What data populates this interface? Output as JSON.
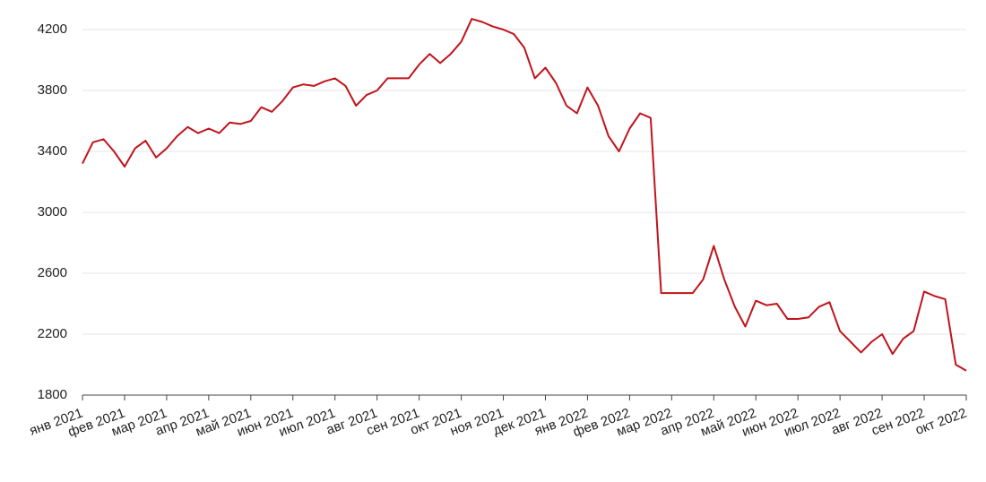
{
  "chart_data": {
    "type": "line",
    "xticks": [
      "янв 2021",
      "фев 2021",
      "мар 2021",
      "апр 2021",
      "май 2021",
      "июн 2021",
      "июл 2021",
      "авг 2021",
      "сен 2021",
      "окт 2021",
      "ноя 2021",
      "дек 2021",
      "янв 2022",
      "фев 2022",
      "мар 2022",
      "апр 2022",
      "май 2022",
      "июн 2022",
      "июл 2022",
      "авг 2022",
      "сен 2022",
      "окт 2022"
    ],
    "values": [
      3320,
      3460,
      3480,
      3400,
      3300,
      3420,
      3470,
      3360,
      3420,
      3500,
      3560,
      3520,
      3550,
      3520,
      3590,
      3580,
      3600,
      3690,
      3660,
      3730,
      3820,
      3840,
      3830,
      3860,
      3880,
      3830,
      3700,
      3770,
      3800,
      3880,
      3880,
      3880,
      3970,
      4040,
      3980,
      4040,
      4120,
      4270,
      4250,
      4220,
      4200,
      4170,
      4080,
      3880,
      3950,
      3850,
      3700,
      3650,
      3820,
      3700,
      3500,
      3400,
      3550,
      3650,
      3620,
      2470,
      2470,
      2470,
      2470,
      2560,
      2780,
      2560,
      2380,
      2250,
      2420,
      2390,
      2400,
      2300,
      2300,
      2310,
      2380,
      2410,
      2220,
      2150,
      2080,
      2150,
      2200,
      2070,
      2170,
      2220,
      2480,
      2450,
      2430,
      2000,
      1960
    ],
    "color": "#c0141c",
    "ylim": [
      1800,
      4300
    ],
    "yticks": [
      1800,
      2200,
      2600,
      3000,
      3400,
      3800,
      4200
    ],
    "grid": true
  }
}
